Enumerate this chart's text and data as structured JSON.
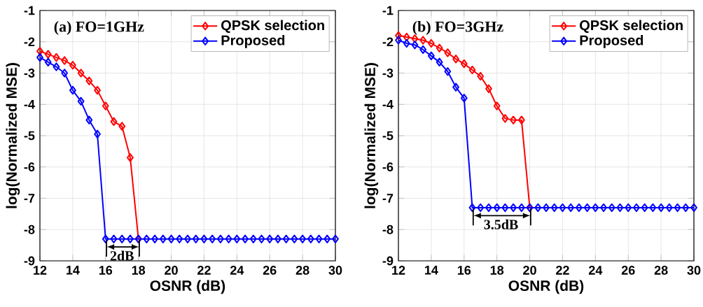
{
  "chart_data": [
    {
      "type": "line",
      "xlabel": "OSNR (dB)",
      "ylabel": "log(Normalized MSE)",
      "x": [
        12,
        12.5,
        13,
        13.5,
        14,
        14.5,
        15,
        15.5,
        16,
        16.5,
        17,
        17.5,
        18,
        18.5,
        19,
        19.5,
        20,
        20.5,
        21,
        21.5,
        22,
        22.5,
        23,
        23.5,
        24,
        24.5,
        25,
        25.5,
        26,
        26.5,
        27,
        27.5,
        28,
        28.5,
        29,
        29.5,
        30
      ],
      "series": [
        {
          "name": "QPSK selection",
          "color": "#ff0000",
          "values": [
            -2.3,
            -2.4,
            -2.5,
            -2.6,
            -2.75,
            -3.0,
            -3.25,
            -3.55,
            -4.05,
            -4.55,
            -4.7,
            -5.7,
            -8.3,
            null,
            null,
            null,
            null,
            null,
            null,
            null,
            null,
            null,
            null,
            null,
            null,
            null,
            null,
            null,
            null,
            null,
            null,
            null,
            null,
            null,
            null,
            null,
            null
          ]
        },
        {
          "name": "Proposed",
          "color": "#0000ff",
          "values": [
            -2.5,
            -2.65,
            -2.8,
            -3.0,
            -3.55,
            -3.9,
            -4.5,
            -4.95,
            -8.3,
            -8.3,
            -8.3,
            -8.3,
            -8.3,
            -8.3,
            -8.3,
            -8.3,
            -8.3,
            -8.3,
            -8.3,
            -8.3,
            -8.3,
            -8.3,
            -8.3,
            -8.3,
            -8.3,
            -8.3,
            -8.3,
            -8.3,
            -8.3,
            -8.3,
            -8.3,
            -8.3,
            -8.3,
            -8.3,
            -8.3,
            -8.3,
            -8.3
          ]
        }
      ],
      "xlim": [
        12,
        30
      ],
      "ylim": [
        -9,
        -1
      ],
      "xticks": [
        12,
        14,
        16,
        18,
        20,
        22,
        24,
        26,
        28,
        30
      ],
      "yticks": [
        -9,
        -8,
        -7,
        -6,
        -5,
        -4,
        -3,
        -2,
        -1
      ],
      "grid": true,
      "legend": "top right",
      "marker": "diamond",
      "line_style": "solid",
      "annotations": [
        "(a) FO=1GHz",
        "2dB"
      ]
    },
    {
      "type": "line",
      "xlabel": "OSNR (dB)",
      "ylabel": "log(Normalized MSE)",
      "x": [
        12,
        12.5,
        13,
        13.5,
        14,
        14.5,
        15,
        15.5,
        16,
        16.5,
        17,
        17.5,
        18,
        18.5,
        19,
        19.5,
        20,
        20.5,
        21,
        21.5,
        22,
        22.5,
        23,
        23.5,
        24,
        24.5,
        25,
        25.5,
        26,
        26.5,
        27,
        27.5,
        28,
        28.5,
        29,
        29.5,
        30
      ],
      "series": [
        {
          "name": "QPSK selection",
          "color": "#ff0000",
          "values": [
            -1.8,
            -1.85,
            -1.9,
            -1.95,
            -2.05,
            -2.2,
            -2.35,
            -2.55,
            -2.7,
            -2.9,
            -3.1,
            -3.5,
            -4.05,
            -4.45,
            -4.5,
            -4.5,
            -7.3,
            null,
            null,
            null,
            null,
            null,
            null,
            null,
            null,
            null,
            null,
            null,
            null,
            null,
            null,
            null,
            null,
            null,
            null,
            null,
            null
          ]
        },
        {
          "name": "Proposed",
          "color": "#0000ff",
          "values": [
            -1.95,
            -2.05,
            -2.1,
            -2.25,
            -2.45,
            -2.65,
            -2.95,
            -3.45,
            -3.8,
            -7.3,
            -7.3,
            -7.3,
            -7.3,
            -7.3,
            -7.3,
            -7.3,
            -7.3,
            -7.3,
            -7.3,
            -7.3,
            -7.3,
            -7.3,
            -7.3,
            -7.3,
            -7.3,
            -7.3,
            -7.3,
            -7.3,
            -7.3,
            -7.3,
            -7.3,
            -7.3,
            -7.3,
            -7.3,
            -7.3,
            -7.3,
            -7.3
          ]
        }
      ],
      "xlim": [
        12,
        30
      ],
      "ylim": [
        -9,
        -1
      ],
      "xticks": [
        12,
        14,
        16,
        18,
        20,
        22,
        24,
        26,
        28,
        30
      ],
      "yticks": [
        -9,
        -8,
        -7,
        -6,
        -5,
        -4,
        -3,
        -2,
        -1
      ],
      "grid": true,
      "legend": "top right",
      "marker": "diamond",
      "line_style": "solid",
      "annotations": [
        "(b) FO=3GHz",
        "3.5dB"
      ]
    }
  ]
}
